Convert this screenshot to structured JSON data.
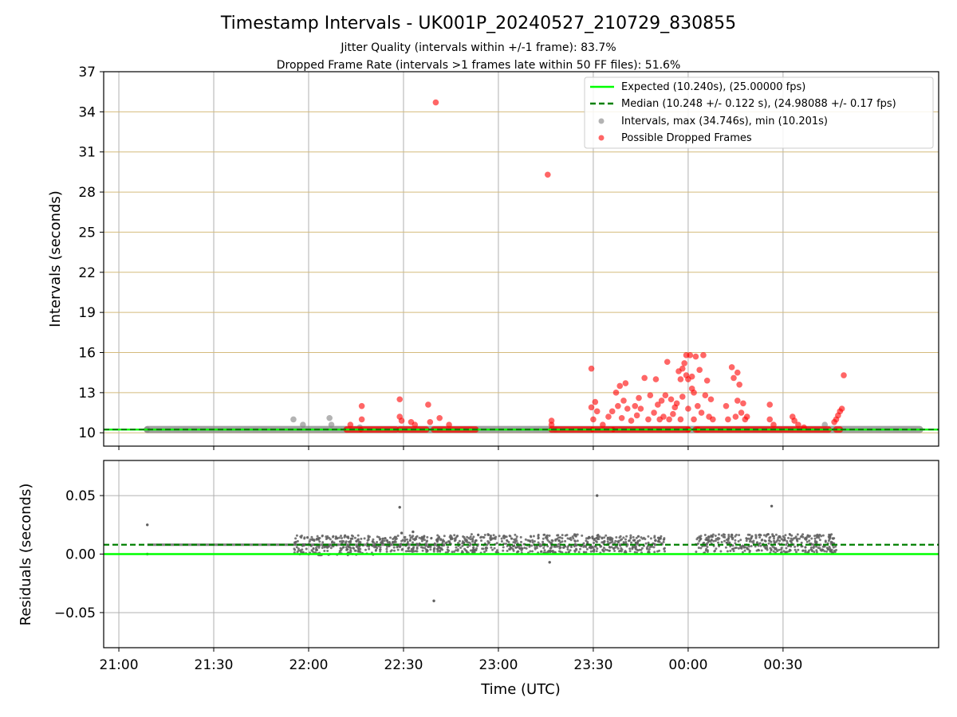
{
  "chart_data": [
    {
      "type": "scatter",
      "title": "Timestamp Intervals - UK001P_20240527_210729_830855",
      "subtitle_1": "Jitter Quality (intervals within +/-1 frame): 83.7%",
      "subtitle_2": "Dropped Frame Rate (intervals >1 frames late within 50 FF files): 51.6%",
      "xlabel": "",
      "ylabel": "Intervals (seconds)",
      "xlim": [
        20.92,
        25.32
      ],
      "ylim": [
        9,
        37
      ],
      "yticks": [
        10,
        13,
        16,
        19,
        22,
        25,
        28,
        31,
        34,
        37
      ],
      "y_tick_labels": [
        "10",
        "13",
        "16",
        "19",
        "22",
        "25",
        "28",
        "31",
        "34",
        "37"
      ],
      "x_ticks": [
        21.0,
        21.5,
        22.0,
        22.5,
        23.0,
        23.5,
        24.0,
        24.5
      ],
      "grid": true,
      "legend_placement": "top-right",
      "legend": [
        "Expected (10.240s), (25.00000 fps)",
        "Median (10.248 +/- 0.122 s), (24.98088 +/- 0.17 fps)",
        "Intervals, max (34.746s), min (10.201s)",
        "Possible Dropped Frames"
      ],
      "expected_interval": 10.24,
      "median_interval": 10.248,
      "colors": {
        "expected": "#00ff00",
        "median": "#008000",
        "intervals": "#808080",
        "dropped": "#ff0000",
        "hgrid": "#d4bb7c"
      },
      "intervals_band": {
        "x_start": 21.15,
        "x_end": 25.22,
        "y": 10.24
      },
      "gray_points": [
        {
          "x": 21.15,
          "y": 10.24
        },
        {
          "x": 21.92,
          "y": 11.0
        },
        {
          "x": 21.97,
          "y": 10.6
        },
        {
          "x": 22.11,
          "y": 11.1
        },
        {
          "x": 22.12,
          "y": 10.6
        },
        {
          "x": 22.27,
          "y": 10.4
        },
        {
          "x": 23.3,
          "y": 10.24
        },
        {
          "x": 24.72,
          "y": 10.6
        }
      ],
      "dropped_points": [
        {
          "x": 22.67,
          "y": 34.7
        },
        {
          "x": 23.26,
          "y": 29.3
        },
        {
          "x": 22.28,
          "y": 12.0
        },
        {
          "x": 22.28,
          "y": 11.0
        },
        {
          "x": 22.22,
          "y": 10.6
        },
        {
          "x": 22.48,
          "y": 12.5
        },
        {
          "x": 22.48,
          "y": 11.2
        },
        {
          "x": 22.49,
          "y": 10.9
        },
        {
          "x": 22.54,
          "y": 10.8
        },
        {
          "x": 22.56,
          "y": 10.6
        },
        {
          "x": 22.63,
          "y": 12.1
        },
        {
          "x": 22.64,
          "y": 10.8
        },
        {
          "x": 22.69,
          "y": 11.1
        },
        {
          "x": 22.74,
          "y": 10.6
        },
        {
          "x": 23.28,
          "y": 10.9
        },
        {
          "x": 23.28,
          "y": 10.6
        },
        {
          "x": 23.49,
          "y": 14.8
        },
        {
          "x": 23.49,
          "y": 11.9
        },
        {
          "x": 23.5,
          "y": 11.0
        },
        {
          "x": 23.51,
          "y": 12.3
        },
        {
          "x": 23.52,
          "y": 11.6
        },
        {
          "x": 23.55,
          "y": 10.6
        },
        {
          "x": 23.58,
          "y": 11.2
        },
        {
          "x": 23.6,
          "y": 11.6
        },
        {
          "x": 23.62,
          "y": 13.0
        },
        {
          "x": 23.63,
          "y": 12.0
        },
        {
          "x": 23.64,
          "y": 13.5
        },
        {
          "x": 23.65,
          "y": 11.1
        },
        {
          "x": 23.66,
          "y": 12.4
        },
        {
          "x": 23.67,
          "y": 13.7
        },
        {
          "x": 23.68,
          "y": 11.8
        },
        {
          "x": 23.7,
          "y": 10.9
        },
        {
          "x": 23.72,
          "y": 12.0
        },
        {
          "x": 23.73,
          "y": 11.3
        },
        {
          "x": 23.74,
          "y": 12.6
        },
        {
          "x": 23.75,
          "y": 11.8
        },
        {
          "x": 23.77,
          "y": 14.1
        },
        {
          "x": 23.79,
          "y": 11.0
        },
        {
          "x": 23.8,
          "y": 12.8
        },
        {
          "x": 23.82,
          "y": 11.5
        },
        {
          "x": 23.83,
          "y": 14.0
        },
        {
          "x": 23.84,
          "y": 12.1
        },
        {
          "x": 23.85,
          "y": 11.0
        },
        {
          "x": 23.86,
          "y": 12.4
        },
        {
          "x": 23.87,
          "y": 11.2
        },
        {
          "x": 23.88,
          "y": 12.8
        },
        {
          "x": 23.89,
          "y": 15.3
        },
        {
          "x": 23.9,
          "y": 11.0
        },
        {
          "x": 23.91,
          "y": 12.5
        },
        {
          "x": 23.92,
          "y": 11.4
        },
        {
          "x": 23.93,
          "y": 11.9
        },
        {
          "x": 23.94,
          "y": 12.2
        },
        {
          "x": 23.95,
          "y": 14.6
        },
        {
          "x": 23.96,
          "y": 14.0
        },
        {
          "x": 23.96,
          "y": 11.0
        },
        {
          "x": 23.97,
          "y": 12.7
        },
        {
          "x": 23.97,
          "y": 14.8
        },
        {
          "x": 23.98,
          "y": 15.2
        },
        {
          "x": 23.99,
          "y": 15.8
        },
        {
          "x": 23.99,
          "y": 14.3
        },
        {
          "x": 24.0,
          "y": 14.0
        },
        {
          "x": 24.0,
          "y": 11.8
        },
        {
          "x": 24.01,
          "y": 15.8
        },
        {
          "x": 24.02,
          "y": 14.2
        },
        {
          "x": 24.02,
          "y": 13.3
        },
        {
          "x": 24.03,
          "y": 13.0
        },
        {
          "x": 24.03,
          "y": 11.0
        },
        {
          "x": 24.04,
          "y": 15.7
        },
        {
          "x": 24.05,
          "y": 12.0
        },
        {
          "x": 24.06,
          "y": 14.7
        },
        {
          "x": 24.07,
          "y": 11.5
        },
        {
          "x": 24.08,
          "y": 15.8
        },
        {
          "x": 24.09,
          "y": 12.8
        },
        {
          "x": 24.1,
          "y": 13.9
        },
        {
          "x": 24.11,
          "y": 11.2
        },
        {
          "x": 24.12,
          "y": 12.5
        },
        {
          "x": 24.13,
          "y": 11.0
        },
        {
          "x": 24.0,
          "y": 10.24
        },
        {
          "x": 24.05,
          "y": 10.24
        },
        {
          "x": 24.2,
          "y": 12.0
        },
        {
          "x": 24.21,
          "y": 11.0
        },
        {
          "x": 24.23,
          "y": 14.9
        },
        {
          "x": 24.24,
          "y": 14.1
        },
        {
          "x": 24.25,
          "y": 11.2
        },
        {
          "x": 24.26,
          "y": 14.5
        },
        {
          "x": 24.26,
          "y": 12.4
        },
        {
          "x": 24.27,
          "y": 13.6
        },
        {
          "x": 24.28,
          "y": 11.5
        },
        {
          "x": 24.29,
          "y": 12.2
        },
        {
          "x": 24.3,
          "y": 11.0
        },
        {
          "x": 24.31,
          "y": 11.2
        },
        {
          "x": 24.43,
          "y": 12.1
        },
        {
          "x": 24.43,
          "y": 11.0
        },
        {
          "x": 24.45,
          "y": 10.6
        },
        {
          "x": 24.55,
          "y": 11.2
        },
        {
          "x": 24.56,
          "y": 10.9
        },
        {
          "x": 24.58,
          "y": 10.6
        },
        {
          "x": 24.61,
          "y": 10.4
        },
        {
          "x": 24.78,
          "y": 11.0
        },
        {
          "x": 24.79,
          "y": 11.3
        },
        {
          "x": 24.8,
          "y": 11.6
        },
        {
          "x": 24.81,
          "y": 11.8
        },
        {
          "x": 24.82,
          "y": 14.3
        },
        {
          "x": 24.77,
          "y": 10.8
        }
      ],
      "dropped_baseline_segments": [
        {
          "from": 22.2,
          "to": 22.27
        },
        {
          "from": 22.28,
          "to": 22.46
        },
        {
          "from": 22.48,
          "to": 22.62
        },
        {
          "from": 22.66,
          "to": 22.88
        },
        {
          "from": 23.28,
          "to": 23.49
        },
        {
          "from": 23.5,
          "to": 23.6
        },
        {
          "from": 23.61,
          "to": 24.0
        },
        {
          "from": 24.04,
          "to": 24.74
        },
        {
          "from": 24.78,
          "to": 24.8
        }
      ],
      "dropped_baseline_y": 10.24
    },
    {
      "type": "scatter",
      "xlabel": "Time (UTC)",
      "ylabel": "Residuals (seconds)",
      "xlim": [
        20.92,
        25.32
      ],
      "ylim": [
        -0.08,
        0.08
      ],
      "yticks": [
        -0.05,
        0.0,
        0.05
      ],
      "y_tick_labels": [
        "−0.05",
        "0.00",
        "0.05"
      ],
      "x_ticks": [
        21.0,
        21.5,
        22.0,
        22.5,
        23.0,
        23.5,
        24.0,
        24.5
      ],
      "x_tick_labels": [
        "21:00",
        "21:30",
        "22:00",
        "22:30",
        "23:00",
        "23:30",
        "00:00",
        "00:30"
      ],
      "grid": true,
      "zero_line": 0.0,
      "median_line": 0.008,
      "colors": {
        "expected": "#00ff00",
        "median": "#008000",
        "points": "#606060",
        "grid": "#b0b0b0"
      },
      "tight_band": {
        "x_start": 21.15,
        "x_end": 22.72,
        "y": 0.008
      },
      "scatter_segments": [
        {
          "from": 21.92,
          "to": 22.35,
          "lo": -0.001,
          "hi": 0.016
        },
        {
          "from": 22.35,
          "to": 22.72,
          "lo": 0.002,
          "hi": 0.016
        },
        {
          "from": 22.72,
          "to": 23.55,
          "lo": 0.001,
          "hi": 0.017
        },
        {
          "from": 23.55,
          "to": 23.88,
          "lo": 0.001,
          "hi": 0.016
        },
        {
          "from": 24.04,
          "to": 24.78,
          "lo": 0.001,
          "hi": 0.017
        }
      ],
      "outliers": [
        {
          "x": 21.15,
          "y": 0.025
        },
        {
          "x": 21.15,
          "y": 0.0
        },
        {
          "x": 22.48,
          "y": 0.04
        },
        {
          "x": 22.66,
          "y": -0.04
        },
        {
          "x": 23.27,
          "y": -0.007
        },
        {
          "x": 23.52,
          "y": 0.05
        },
        {
          "x": 24.44,
          "y": 0.041
        },
        {
          "x": 22.49,
          "y": 0.018
        },
        {
          "x": 22.55,
          "y": 0.019
        }
      ]
    }
  ]
}
